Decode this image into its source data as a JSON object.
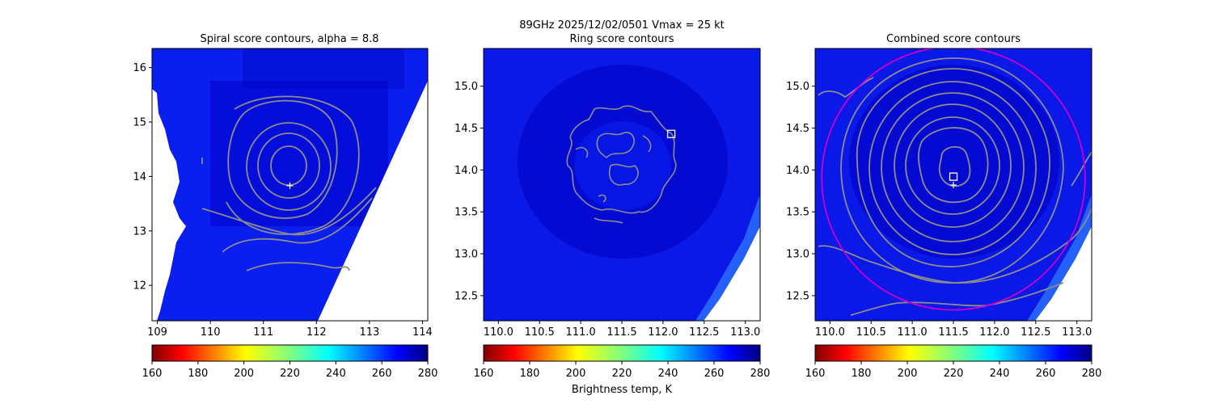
{
  "suptitle": {
    "line1": "89GHz  2025/12/02/0501    Vmax = 25 kt"
  },
  "colorbar": {
    "label": "Brightness temp, K",
    "ticks": [
      160,
      180,
      200,
      220,
      240,
      260,
      280
    ],
    "range": [
      160,
      280
    ],
    "colormap": "jet_r"
  },
  "chart_data": [
    {
      "type": "heatmap",
      "title": "Spiral score contours, alpha =  8.8",
      "xlim": [
        108.9,
        114.1
      ],
      "ylim": [
        11.35,
        16.35
      ],
      "xticks": [
        109,
        110,
        111,
        112,
        113,
        114
      ],
      "yticks": [
        12,
        13,
        14,
        15,
        16
      ],
      "xtick_labels": [
        "109",
        "110",
        "111",
        "112",
        "113",
        "114"
      ],
      "ytick_labels": [
        "12",
        "13",
        "14",
        "15",
        "16"
      ],
      "field_value_K": 270,
      "contour_color": "#8c8c8c",
      "markers": [
        {
          "kind": "plus",
          "x": 111.5,
          "y": 13.83,
          "color": "#ffffff"
        }
      ]
    },
    {
      "type": "heatmap",
      "title": "Ring score contours",
      "xlim": [
        109.82,
        113.18
      ],
      "ylim": [
        12.2,
        15.45
      ],
      "xticks": [
        110.0,
        110.5,
        111.0,
        111.5,
        112.0,
        112.5,
        113.0
      ],
      "yticks": [
        12.5,
        13.0,
        13.5,
        14.0,
        14.5,
        15.0
      ],
      "xtick_labels": [
        "110.0",
        "110.5",
        "111.0",
        "111.5",
        "112.0",
        "112.5",
        "113.0"
      ],
      "ytick_labels": [
        "12.5",
        "13.0",
        "13.5",
        "14.0",
        "14.5",
        "15.0"
      ],
      "field_value_K": 272,
      "contour_color": "#8c8c8c",
      "markers": [
        {
          "kind": "square",
          "x": 112.1,
          "y": 14.43,
          "color": "#ffffff"
        }
      ]
    },
    {
      "type": "heatmap",
      "title": "Combined score contours",
      "xlim": [
        109.82,
        113.18
      ],
      "ylim": [
        12.2,
        15.45
      ],
      "xticks": [
        110.0,
        110.5,
        111.0,
        111.5,
        112.0,
        112.5,
        113.0
      ],
      "yticks": [
        12.5,
        13.0,
        13.5,
        14.0,
        14.5,
        15.0
      ],
      "xtick_labels": [
        "110.0",
        "110.5",
        "111.0",
        "111.5",
        "112.0",
        "112.5",
        "113.0"
      ],
      "ytick_labels": [
        "12.5",
        "13.0",
        "13.5",
        "14.0",
        "14.5",
        "15.0"
      ],
      "field_value_K": 272,
      "contour_color": "#8c8c8c",
      "circle": {
        "cx": 111.5,
        "cy": 13.9,
        "r": 1.6,
        "color": "#cc00cc"
      },
      "markers": [
        {
          "kind": "square",
          "x": 111.5,
          "y": 13.92,
          "color": "#ffffff"
        },
        {
          "kind": "plus",
          "x": 111.5,
          "y": 13.82,
          "color": "#ffffff"
        }
      ]
    }
  ]
}
